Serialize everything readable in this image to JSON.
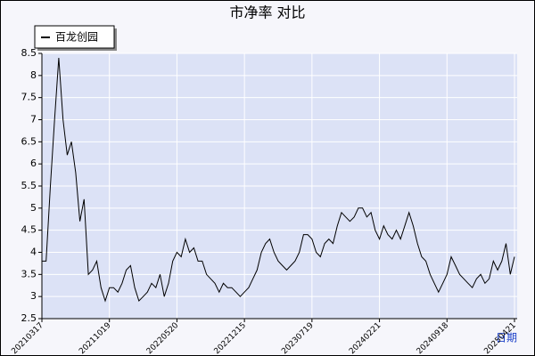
{
  "chart_data": {
    "type": "line",
    "title": "市净率  对比",
    "xlabel": "日期",
    "categories": [
      "20210317",
      null,
      null,
      null,
      null,
      null,
      null,
      null,
      null,
      null,
      null,
      null,
      null,
      null,
      null,
      null,
      "20211019",
      null,
      null,
      null,
      null,
      null,
      null,
      null,
      null,
      null,
      null,
      null,
      null,
      null,
      null,
      null,
      "20220520",
      null,
      null,
      null,
      null,
      null,
      null,
      null,
      null,
      null,
      null,
      null,
      null,
      null,
      null,
      null,
      "20221215",
      null,
      null,
      null,
      null,
      null,
      null,
      null,
      null,
      null,
      null,
      null,
      null,
      null,
      null,
      null,
      "20230719",
      null,
      null,
      null,
      null,
      null,
      null,
      null,
      null,
      null,
      null,
      null,
      null,
      null,
      null,
      null,
      "20240221",
      null,
      null,
      null,
      null,
      null,
      null,
      null,
      null,
      null,
      null,
      null,
      null,
      null,
      null,
      null,
      "20240918",
      null,
      null,
      null,
      null,
      null,
      null,
      null,
      null,
      null,
      null,
      null,
      null,
      null,
      null,
      null,
      "20250421"
    ],
    "series": [
      {
        "name": "百龙创园",
        "color": "#000000",
        "values": [
          3.8,
          3.8,
          5.5,
          7.0,
          8.4,
          7.0,
          6.2,
          6.5,
          5.8,
          4.7,
          5.2,
          3.5,
          3.6,
          3.8,
          3.2,
          2.9,
          3.2,
          3.2,
          3.1,
          3.3,
          3.6,
          3.7,
          3.2,
          2.9,
          3.0,
          3.1,
          3.3,
          3.2,
          3.5,
          3.0,
          3.3,
          3.8,
          4.0,
          3.9,
          4.3,
          4.0,
          4.1,
          3.8,
          3.8,
          3.5,
          3.4,
          3.3,
          3.1,
          3.3,
          3.2,
          3.2,
          3.1,
          3.0,
          3.1,
          3.2,
          3.4,
          3.6,
          4.0,
          4.2,
          4.3,
          4.0,
          3.8,
          3.7,
          3.6,
          3.7,
          3.8,
          4.0,
          4.4,
          4.4,
          4.3,
          4.0,
          3.9,
          4.2,
          4.3,
          4.2,
          4.6,
          4.9,
          4.8,
          4.7,
          4.8,
          5.0,
          5.0,
          4.8,
          4.9,
          4.5,
          4.3,
          4.6,
          4.4,
          4.3,
          4.5,
          4.3,
          4.6,
          4.9,
          4.6,
          4.2,
          3.9,
          3.8,
          3.5,
          3.3,
          3.1,
          3.3,
          3.5,
          3.9,
          3.7,
          3.5,
          3.4,
          3.3,
          3.2,
          3.4,
          3.5,
          3.3,
          3.4,
          3.8,
          3.6,
          3.8,
          4.2,
          3.5,
          3.9
        ]
      }
    ],
    "ylim": [
      2.5,
      8.5
    ],
    "yticks": [
      2.5,
      3.0,
      3.5,
      4.0,
      4.5,
      5.0,
      5.5,
      6.0,
      6.5,
      7.0,
      7.5,
      8.0,
      8.5
    ],
    "grid": true,
    "legend": "top-left"
  }
}
